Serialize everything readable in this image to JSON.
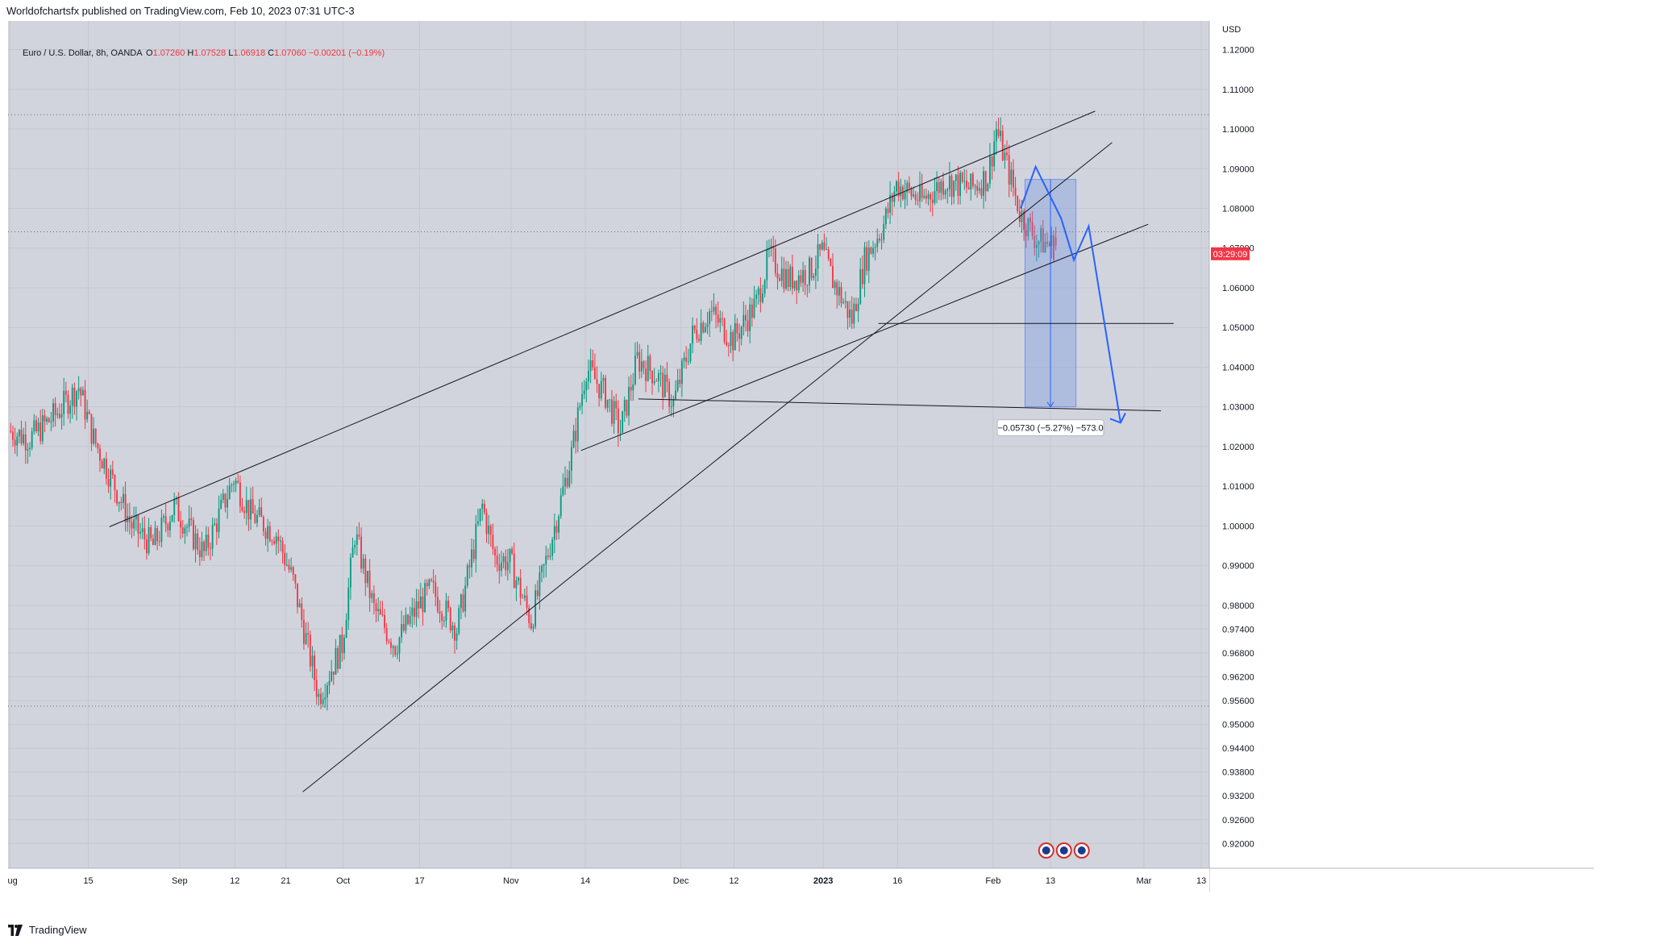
{
  "header": {
    "publisher": "Worldofchartsfx published on TradingView.com, Feb 10, 2023 07:31 UTC-3"
  },
  "legend": {
    "symbol": "Euro / U.S. Dollar, 8h, OANDA",
    "open_label": "O",
    "open": "1.07260",
    "high_label": "H",
    "high": "1.07528",
    "low_label": "L",
    "low": "1.06918",
    "close_label": "C",
    "close": "1.07060",
    "change": "−0.00201 (−0.19%)"
  },
  "footer": {
    "brand": "TradingView"
  },
  "colors": {
    "background": "#d1d4dc",
    "up": "#089981",
    "down": "#f23645",
    "drawing": "#131722",
    "projection": "#2962ff",
    "range_fill": "#6e8fe0"
  },
  "chart_data": {
    "type": "candlestick",
    "symbol": "EURUSD",
    "timeframe": "8h",
    "currency_label": "USD",
    "ylim": [
      0.916,
      1.126
    ],
    "y_ticks": [
      "1.12000",
      "1.11000",
      "1.10000",
      "1.09000",
      "1.08000",
      "1.07000",
      "1.06000",
      "1.05000",
      "1.04000",
      "1.03000",
      "1.02000",
      "1.01000",
      "1.00000",
      "0.99000",
      "0.98000",
      "0.97400",
      "0.96800",
      "0.96200",
      "0.95600",
      "0.95000",
      "0.94400",
      "0.93800",
      "0.93200",
      "0.92600",
      "0.92000"
    ],
    "y_tick_values": [
      1.12,
      1.11,
      1.1,
      1.09,
      1.08,
      1.07,
      1.06,
      1.05,
      1.04,
      1.03,
      1.02,
      1.01,
      1.0,
      0.99,
      0.98,
      0.974,
      0.968,
      0.962,
      0.956,
      0.95,
      0.944,
      0.938,
      0.932,
      0.926,
      0.92
    ],
    "x_ticks": [
      {
        "label": "Aug",
        "bar": 0
      },
      {
        "label": "15",
        "bar": 37
      },
      {
        "label": "Sep",
        "bar": 80
      },
      {
        "label": "12",
        "bar": 106
      },
      {
        "label": "21",
        "bar": 130
      },
      {
        "label": "Oct",
        "bar": 157
      },
      {
        "label": "17",
        "bar": 193
      },
      {
        "label": "Nov",
        "bar": 236
      },
      {
        "label": "14",
        "bar": 271
      },
      {
        "label": "Dec",
        "bar": 316
      },
      {
        "label": "12",
        "bar": 341
      },
      {
        "label": "2023",
        "bar": 383
      },
      {
        "label": "16",
        "bar": 418
      },
      {
        "label": "Feb",
        "bar": 463
      },
      {
        "label": "13",
        "bar": 490
      },
      {
        "label": "Mar",
        "bar": 534
      },
      {
        "label": "13",
        "bar": 561
      }
    ],
    "total_bars": 564,
    "current_price": 1.0706,
    "countdown": "03:29:09",
    "path": [
      [
        0,
        1.024
      ],
      [
        10,
        1.022
      ],
      [
        22,
        1.028
      ],
      [
        33,
        1.035
      ],
      [
        40,
        1.022
      ],
      [
        50,
        1.01
      ],
      [
        58,
        1.0
      ],
      [
        68,
        0.995
      ],
      [
        78,
        1.005
      ],
      [
        92,
        0.993
      ],
      [
        106,
        1.012
      ],
      [
        114,
        1.003
      ],
      [
        126,
        0.998
      ],
      [
        134,
        0.986
      ],
      [
        146,
        0.957
      ],
      [
        157,
        0.97
      ],
      [
        163,
        0.998
      ],
      [
        172,
        0.979
      ],
      [
        182,
        0.97
      ],
      [
        193,
        0.98
      ],
      [
        199,
        0.984
      ],
      [
        211,
        0.974
      ],
      [
        223,
        1.005
      ],
      [
        229,
        0.992
      ],
      [
        236,
        0.991
      ],
      [
        246,
        0.976
      ],
      [
        258,
        1.002
      ],
      [
        265,
        1.018
      ],
      [
        272,
        1.04
      ],
      [
        281,
        1.033
      ],
      [
        288,
        1.024
      ],
      [
        296,
        1.042
      ],
      [
        305,
        1.038
      ],
      [
        313,
        1.031
      ],
      [
        322,
        1.048
      ],
      [
        330,
        1.054
      ],
      [
        341,
        1.047
      ],
      [
        352,
        1.056
      ],
      [
        358,
        1.068
      ],
      [
        367,
        1.062
      ],
      [
        377,
        1.064
      ],
      [
        383,
        1.069
      ],
      [
        388,
        1.062
      ],
      [
        397,
        1.052
      ],
      [
        403,
        1.067
      ],
      [
        412,
        1.076
      ],
      [
        418,
        1.086
      ],
      [
        430,
        1.082
      ],
      [
        441,
        1.087
      ],
      [
        453,
        1.085
      ],
      [
        461,
        1.088
      ],
      [
        465,
        1.1
      ],
      [
        472,
        1.087
      ],
      [
        476,
        1.079
      ],
      [
        484,
        1.072
      ],
      [
        492,
        1.0706
      ]
    ],
    "last_candles": [
      {
        "o": 1.0726,
        "h": 1.07528,
        "l": 1.06918,
        "c": 1.0706
      }
    ],
    "measure": {
      "label": "−0.05730 (−5.27%) −573.0",
      "from_price": 1.0873,
      "to_price": 1.03,
      "from_bar": 478,
      "to_bar": 502
    },
    "horizontal_levels": [
      1.1036,
      1.0741,
      0.9546
    ],
    "drawings": [
      {
        "name": "upper-channel-line",
        "p1": [
          47,
          0.9998
        ],
        "p2": [
          511,
          1.1045
        ]
      },
      {
        "name": "long-support-line",
        "p1": [
          138,
          0.933
        ],
        "p2": [
          519,
          1.0966
        ]
      },
      {
        "name": "lower-channel-line",
        "p1": [
          269,
          1.019
        ],
        "p2": [
          536,
          1.076
        ]
      },
      {
        "name": "support-horizontal",
        "p1": [
          409,
          1.051
        ],
        "p2": [
          548,
          1.051
        ]
      },
      {
        "name": "target-line",
        "p1": [
          296,
          1.032
        ],
        "p2": [
          542,
          1.029
        ]
      }
    ],
    "projection": [
      [
        476,
        1.08
      ],
      [
        483,
        1.0905
      ],
      [
        495,
        1.0775
      ],
      [
        501,
        1.067
      ],
      [
        508,
        1.0755
      ],
      [
        523,
        1.026
      ]
    ],
    "econ_markers": 3
  }
}
